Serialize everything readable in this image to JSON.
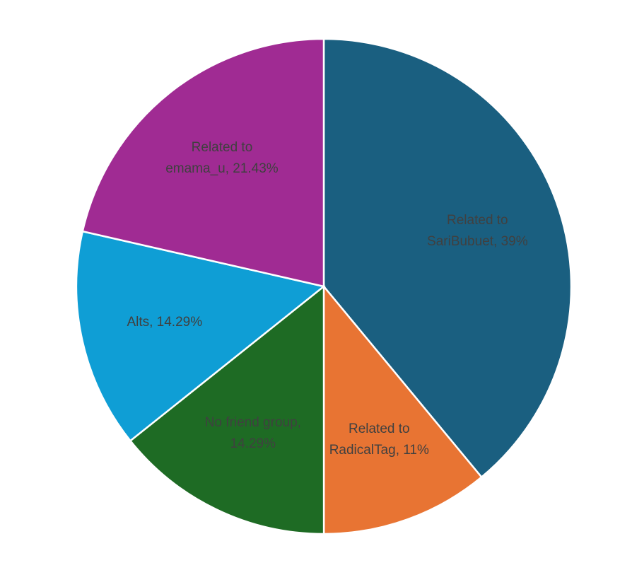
{
  "chart_data": {
    "type": "pie",
    "values": [
      39,
      11,
      14.29,
      14.29,
      21.43
    ],
    "value_labels": [
      "Related to SariBubuet, 39%",
      "Related to RadicalTag, 11%",
      "No friend group, 14.29%",
      "Alts, 14.29%",
      "Related to emama_u, 21.43%"
    ],
    "colors": [
      "#1a5f80",
      "#e87433",
      "#1e6b24",
      "#0f9ed5",
      "#a02b93"
    ]
  }
}
